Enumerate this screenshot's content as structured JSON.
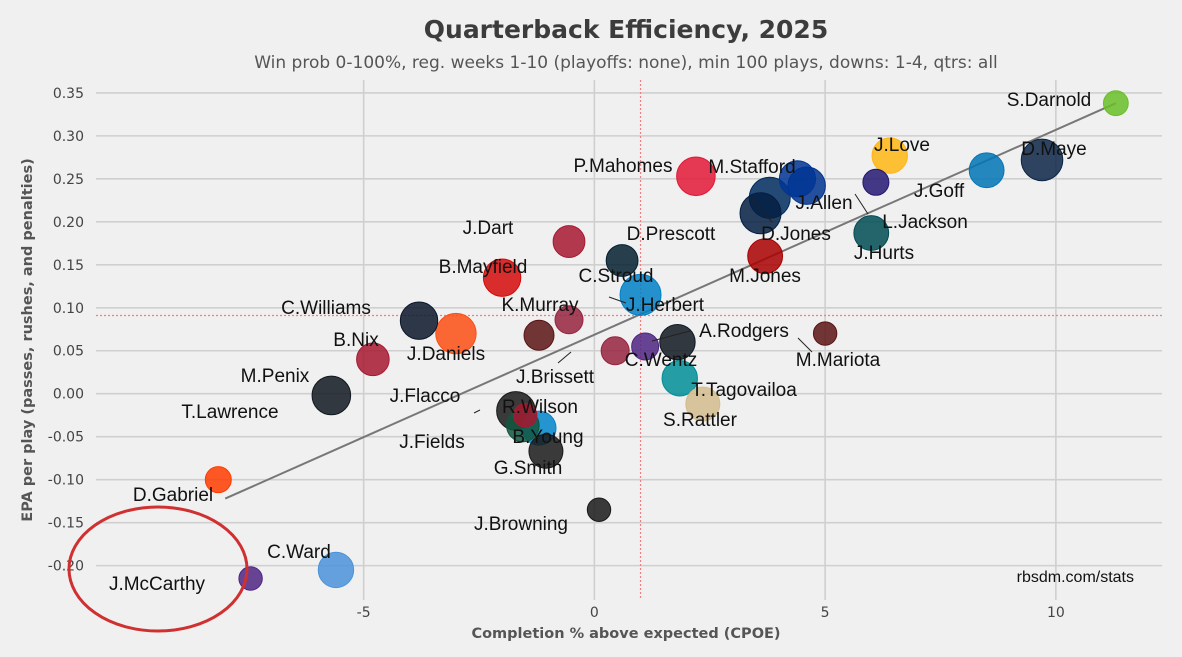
{
  "chart_data": {
    "type": "scatter",
    "title": "Quarterback Efficiency, 2025",
    "subtitle": "Win prob 0-100%, reg. weeks 1-10 (playoffs: none), min 100 plays, downs: 1-4, qtrs: all",
    "xlabel": "Completion % above expected (CPOE)",
    "ylabel": "EPA per play (passes, rushes, and penalties)",
    "xlim": [
      -10.8,
      12.3
    ],
    "ylim": [
      -0.24,
      0.365
    ],
    "x_ticks": [
      -5,
      0,
      5,
      10
    ],
    "x_tick_labels": [
      "-5",
      "0",
      "5",
      "10"
    ],
    "y_ticks": [
      0.35,
      0.3,
      0.25,
      0.2,
      0.15,
      0.1,
      0.05,
      0.0,
      -0.05,
      -0.1,
      -0.15,
      -0.2
    ],
    "y_tick_labels": [
      "0.35",
      "0.30",
      "0.25",
      "0.20",
      "0.15",
      "0.10",
      "0.05",
      "0.00",
      "-0.05",
      "-0.10",
      "-0.15",
      "-0.20"
    ],
    "grid": true,
    "mean_lines": {
      "x": 1.0,
      "y": 0.091
    },
    "trend_line": {
      "x": [
        -8.0,
        11.3
      ],
      "y": [
        -0.122,
        0.338
      ]
    },
    "credit": "rbsdm.com/stats",
    "highlight": {
      "label": "J.McCarthy",
      "shape": "ellipse",
      "color": "#d03030"
    },
    "points": [
      {
        "name": "S.Darnold",
        "x": 11.3,
        "y": 0.338,
        "plays": 50,
        "color": "#69be28"
      },
      {
        "name": "D.Maye",
        "x": 9.7,
        "y": 0.272,
        "plays": 270,
        "color": "#0b2545"
      },
      {
        "name": "J.Love",
        "x": 6.4,
        "y": 0.277,
        "plays": 170,
        "color": "#ffb612"
      },
      {
        "name": "J.Goff",
        "x": 8.5,
        "y": 0.26,
        "plays": 160,
        "color": "#0076b6"
      },
      {
        "name": "P.Mahomes",
        "x": 2.2,
        "y": 0.253,
        "plays": 220,
        "color": "#e31837"
      },
      {
        "name": "M.Stafford",
        "x": 4.4,
        "y": 0.25,
        "plays": 180,
        "color": "#003594"
      },
      {
        "name": "J.Allen",
        "x": 4.6,
        "y": 0.242,
        "plays": 200,
        "color": "#00338d"
      },
      {
        "name": "L.Jackson",
        "x": 6.1,
        "y": 0.246,
        "plays": 60,
        "color": "#241773"
      },
      {
        "name": "D.Jones",
        "x": 3.8,
        "y": 0.228,
        "plays": 260,
        "color": "#002c5f"
      },
      {
        "name": "D.Prescott",
        "x": 3.6,
        "y": 0.21,
        "plays": 260,
        "color": "#041e42"
      },
      {
        "name": "J.Hurts",
        "x": 6.0,
        "y": 0.187,
        "plays": 160,
        "color": "#004c54"
      },
      {
        "name": "M.Jones",
        "x": 3.7,
        "y": 0.16,
        "plays": 160,
        "color": "#aa0000"
      },
      {
        "name": "J.Dart",
        "x": -0.55,
        "y": 0.177,
        "plays": 120,
        "color": "#a71930"
      },
      {
        "name": "C.Stroud",
        "x": 0.6,
        "y": 0.155,
        "plays": 120,
        "color": "#03202f"
      },
      {
        "name": "B.Mayfield",
        "x": -2.0,
        "y": 0.135,
        "plays": 200,
        "color": "#d50a0a"
      },
      {
        "name": "J.Herbert",
        "x": 1.0,
        "y": 0.115,
        "plays": 260,
        "color": "#0080c6"
      },
      {
        "name": "K.Murray",
        "x": -0.55,
        "y": 0.086,
        "plays": 80,
        "color": "#97233f"
      },
      {
        "name": "C.Williams",
        "x": -3.8,
        "y": 0.085,
        "plays": 200,
        "color": "#0b162a"
      },
      {
        "name": "B.Nix",
        "x": -3.0,
        "y": 0.07,
        "plays": 250,
        "color": "#fb4f14"
      },
      {
        "name": "J.Daniels",
        "x": -1.2,
        "y": 0.068,
        "plays": 100,
        "color": "#5a1414"
      },
      {
        "name": "A.Rodgers",
        "x": 1.8,
        "y": 0.06,
        "plays": 170,
        "color": "#101820"
      },
      {
        "name": "M.Mariota",
        "x": 5.0,
        "y": 0.07,
        "plays": 40,
        "color": "#5a1414"
      },
      {
        "name": "C.Wentz",
        "x": 1.1,
        "y": 0.055,
        "plays": 70,
        "color": "#4f2683"
      },
      {
        "name": "J.Brissett",
        "x": 0.45,
        "y": 0.05,
        "plays": 80,
        "color": "#97233f"
      },
      {
        "name": "M.Penix",
        "x": -4.8,
        "y": 0.04,
        "plays": 130,
        "color": "#a71930"
      },
      {
        "name": "T.Tagovailoa",
        "x": 1.85,
        "y": 0.018,
        "plays": 170,
        "color": "#008e97"
      },
      {
        "name": "T.Lawrence",
        "x": -5.7,
        "y": -0.002,
        "plays": 220,
        "color": "#101820"
      },
      {
        "name": "S.Rattler",
        "x": 2.35,
        "y": -0.012,
        "plays": 150,
        "color": "#d3bc8d"
      },
      {
        "name": "J.Flacco",
        "x": -1.7,
        "y": -0.02,
        "plays": 220,
        "color": "#1a1a1a"
      },
      {
        "name": "R.Wilson",
        "x": -1.5,
        "y": -0.025,
        "plays": 40,
        "color": "#a71930"
      },
      {
        "name": "J.Fields",
        "x": -1.55,
        "y": -0.037,
        "plays": 130,
        "color": "#125740"
      },
      {
        "name": "B.Young",
        "x": -1.2,
        "y": -0.04,
        "plays": 150,
        "color": "#0085ca"
      },
      {
        "name": "G.Smith",
        "x": -1.05,
        "y": -0.067,
        "plays": 150,
        "color": "#1a1a1a"
      },
      {
        "name": "D.Gabriel",
        "x": -8.15,
        "y": -0.1,
        "plays": 60,
        "color": "#ff3c00"
      },
      {
        "name": "J.Browning",
        "x": 0.1,
        "y": -0.135,
        "plays": 40,
        "color": "#1a1a1a"
      },
      {
        "name": "C.Ward",
        "x": -5.6,
        "y": -0.205,
        "plays": 170,
        "color": "#4b92db"
      },
      {
        "name": "J.McCarthy",
        "x": -7.45,
        "y": -0.215,
        "plays": 40,
        "color": "#4f2683"
      }
    ]
  }
}
